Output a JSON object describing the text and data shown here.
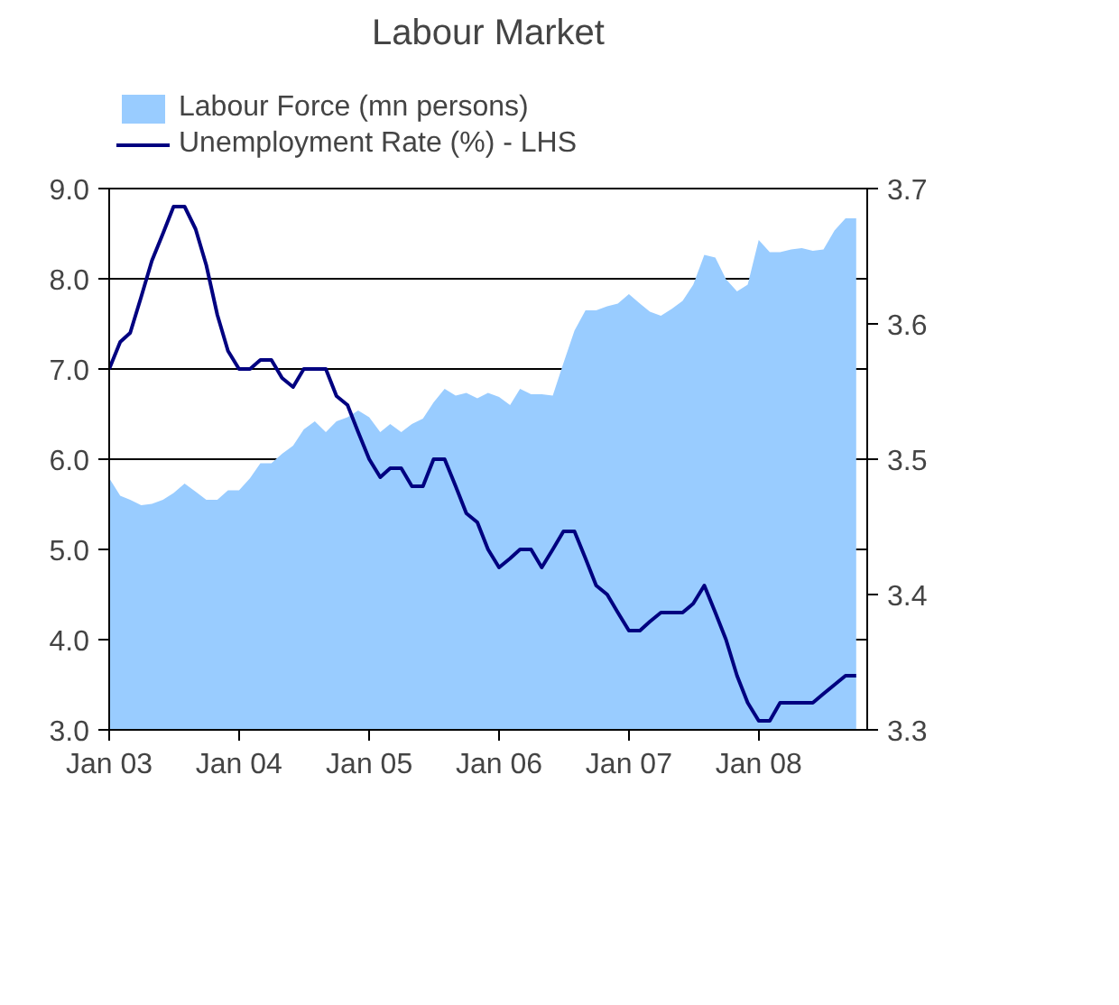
{
  "chart_data": {
    "type": "line",
    "title": "Labour Market",
    "x": [
      "2003-01",
      "2003-02",
      "2003-03",
      "2003-04",
      "2003-05",
      "2003-06",
      "2003-07",
      "2003-08",
      "2003-09",
      "2003-10",
      "2003-11",
      "2003-12",
      "2004-01",
      "2004-02",
      "2004-03",
      "2004-04",
      "2004-05",
      "2004-06",
      "2004-07",
      "2004-08",
      "2004-09",
      "2004-10",
      "2004-11",
      "2004-12",
      "2005-01",
      "2005-02",
      "2005-03",
      "2005-04",
      "2005-05",
      "2005-06",
      "2005-07",
      "2005-08",
      "2005-09",
      "2005-10",
      "2005-11",
      "2005-12",
      "2006-01",
      "2006-02",
      "2006-03",
      "2006-04",
      "2006-05",
      "2006-06",
      "2006-07",
      "2006-08",
      "2006-09",
      "2006-10",
      "2006-11",
      "2006-12",
      "2007-01",
      "2007-02",
      "2007-03",
      "2007-04",
      "2007-05",
      "2007-06",
      "2007-07",
      "2007-08",
      "2007-09",
      "2007-10",
      "2007-11",
      "2007-12",
      "2008-01",
      "2008-02",
      "2008-03",
      "2008-04",
      "2008-05",
      "2008-06",
      "2008-07",
      "2008-08",
      "2008-09",
      "2008-10"
    ],
    "series": [
      {
        "name": "Labour Force (mn persons)",
        "type": "area",
        "axis": "y2",
        "color": "#99ccff",
        "values": [
          3.486,
          3.473,
          3.47,
          3.466,
          3.467,
          3.47,
          3.475,
          3.482,
          3.476,
          3.47,
          3.47,
          3.477,
          3.477,
          3.486,
          3.497,
          3.497,
          3.504,
          3.51,
          3.522,
          3.528,
          3.52,
          3.528,
          3.531,
          3.536,
          3.531,
          3.52,
          3.526,
          3.52,
          3.526,
          3.53,
          3.542,
          3.552,
          3.547,
          3.549,
          3.545,
          3.549,
          3.546,
          3.54,
          3.552,
          3.548,
          3.548,
          3.547,
          3.571,
          3.595,
          3.61,
          3.61,
          3.613,
          3.615,
          3.622,
          3.615,
          3.609,
          3.606,
          3.611,
          3.617,
          3.629,
          3.651,
          3.649,
          3.633,
          3.624,
          3.629,
          3.662,
          3.653,
          3.653,
          3.655,
          3.656,
          3.654,
          3.655,
          3.669,
          3.678,
          3.678
        ]
      },
      {
        "name": "Unemployment Rate (%) - LHS",
        "type": "line",
        "color": "#000080",
        "values": [
          7.0,
          7.3,
          7.4,
          7.8,
          8.2,
          8.5,
          8.8,
          8.8,
          8.55,
          8.15,
          7.6,
          7.2,
          7.0,
          7.0,
          7.1,
          7.1,
          6.9,
          6.8,
          7.0,
          7.0,
          7.0,
          6.7,
          6.6,
          6.3,
          6.0,
          5.8,
          5.9,
          5.9,
          5.7,
          5.7,
          6.0,
          6.0,
          5.7,
          5.4,
          5.3,
          5.0,
          4.8,
          4.9,
          5.0,
          5.0,
          4.8,
          5.0,
          5.2,
          5.2,
          4.9,
          4.6,
          4.5,
          4.3,
          4.1,
          4.1,
          4.2,
          4.3,
          4.3,
          4.3,
          4.4,
          4.6,
          4.3,
          4.0,
          3.6,
          3.3,
          3.1,
          3.1,
          3.3,
          3.3,
          3.3,
          3.3,
          3.4,
          3.5,
          3.6,
          3.6
        ]
      }
    ],
    "xlim": [
      "2003-01",
      "2008-11"
    ],
    "xticks": [
      {
        "value": "2003-01",
        "label": "Jan 03"
      },
      {
        "value": "2004-01",
        "label": "Jan 04"
      },
      {
        "value": "2005-01",
        "label": "Jan 05"
      },
      {
        "value": "2006-01",
        "label": "Jan 06"
      },
      {
        "value": "2007-01",
        "label": "Jan 07"
      },
      {
        "value": "2008-01",
        "label": "Jan 08"
      }
    ],
    "ylim": [
      3,
      9
    ],
    "yticks": [
      {
        "value": 3,
        "label": "3.0"
      },
      {
        "value": 4,
        "label": "4.0"
      },
      {
        "value": 5,
        "label": "5.0"
      },
      {
        "value": 6,
        "label": "6.0"
      },
      {
        "value": 7,
        "label": "7.0"
      },
      {
        "value": 8,
        "label": "8.0"
      },
      {
        "value": 9,
        "label": "9.0"
      }
    ],
    "y2lim": [
      3.3,
      3.7
    ],
    "y2ticks": [
      3.3,
      3.4,
      3.5,
      3.6,
      3.7
    ],
    "grid": "y",
    "legend": "top",
    "marker": "none",
    "line_style": "solid"
  }
}
